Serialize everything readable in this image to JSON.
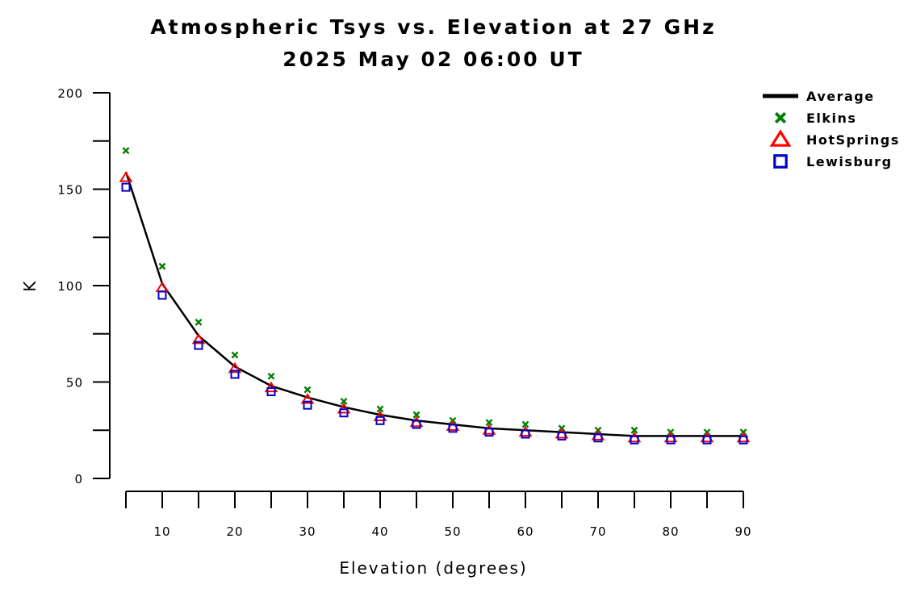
{
  "chart_data": {
    "type": "line",
    "title": "Atmospheric Tsys vs. Elevation at 27 GHz",
    "subtitle": "2025 May 02 06:00 UT",
    "xlabel": "Elevation (degrees)",
    "ylabel": "K",
    "xlim": [
      5,
      90
    ],
    "ylim": [
      0,
      200
    ],
    "x_ticks": [
      10,
      20,
      30,
      40,
      50,
      60,
      70,
      80,
      90
    ],
    "x_tick_labels": [
      "10",
      "20",
      "30",
      "40",
      "50",
      "60",
      "70",
      "80",
      "90"
    ],
    "y_ticks": [
      0,
      50,
      100,
      150,
      200
    ],
    "y_tick_labels": [
      "0",
      "50",
      "100",
      "150",
      "200"
    ],
    "grid": false,
    "legend_position": "top-right",
    "x": [
      5,
      10,
      15,
      20,
      25,
      30,
      35,
      40,
      45,
      50,
      55,
      60,
      65,
      70,
      75,
      80,
      85,
      90
    ],
    "series": [
      {
        "name": "Average",
        "marker": "line",
        "color": "#000000",
        "values": [
          159,
          101,
          74,
          58,
          48,
          42,
          37,
          33,
          30,
          28,
          26,
          25,
          24,
          23,
          22,
          22,
          22,
          22
        ]
      },
      {
        "name": "Elkins",
        "marker": "x",
        "color": "#008000",
        "values": [
          170,
          110,
          81,
          64,
          53,
          46,
          40,
          36,
          33,
          30,
          29,
          28,
          26,
          25,
          25,
          24,
          24,
          24
        ]
      },
      {
        "name": "HotSprings",
        "marker": "triangle",
        "color": "#ff0000",
        "values": [
          156,
          99,
          72,
          57,
          47,
          41,
          36,
          32,
          29,
          27,
          25,
          24,
          23,
          22,
          21,
          21,
          21,
          21
        ]
      },
      {
        "name": "Lewisburg",
        "marker": "square",
        "color": "#0000cc",
        "values": [
          151,
          95,
          69,
          54,
          45,
          38,
          34,
          30,
          28,
          26,
          24,
          23,
          22,
          21,
          20,
          20,
          20,
          20
        ]
      }
    ]
  }
}
